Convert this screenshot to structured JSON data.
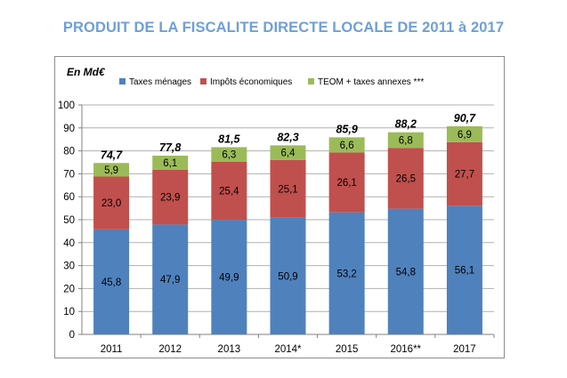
{
  "title": "PRODUIT DE LA FISCALITE DIRECTE LOCALE DE 2011 à 2017",
  "colors": {
    "menages": "#4f81bd",
    "economiques": "#c0504d",
    "teom": "#9bbb59",
    "title": "#6f9fd8"
  },
  "chart_data": {
    "type": "bar",
    "stacked": true,
    "unit_label": "En Md€",
    "categories": [
      "2011",
      "2012",
      "2013",
      "2014*",
      "2015",
      "2016**",
      "2017"
    ],
    "series": [
      {
        "name": "Taxes ménages",
        "values": [
          45.8,
          47.9,
          49.9,
          50.9,
          53.2,
          54.8,
          56.1
        ],
        "labels": [
          "45,8",
          "47,9",
          "49,9",
          "50,9",
          "53,2",
          "54,8",
          "56,1"
        ]
      },
      {
        "name": "Impôts économiques",
        "values": [
          23.0,
          23.9,
          25.4,
          25.1,
          26.1,
          26.5,
          27.7
        ],
        "labels": [
          "23,0",
          "23,9",
          "25,4",
          "25,1",
          "26,1",
          "26,5",
          "27,7"
        ]
      },
      {
        "name": "TEOM + taxes annexes ***",
        "values": [
          5.9,
          6.1,
          6.3,
          6.4,
          6.6,
          6.8,
          6.9
        ],
        "labels": [
          "5,9",
          "6,1",
          "6,3",
          "6,4",
          "6,6",
          "6,8",
          "6,9"
        ]
      }
    ],
    "totals": [
      "74,7",
      "77,8",
      "81,5",
      "82,3",
      "85,9",
      "88,2",
      "90,7"
    ],
    "ylim": [
      0,
      100
    ],
    "yticks": [
      "0",
      "10",
      "20",
      "30",
      "40",
      "50",
      "60",
      "70",
      "80",
      "90",
      "100"
    ],
    "grid": true,
    "legend_position": "top"
  }
}
